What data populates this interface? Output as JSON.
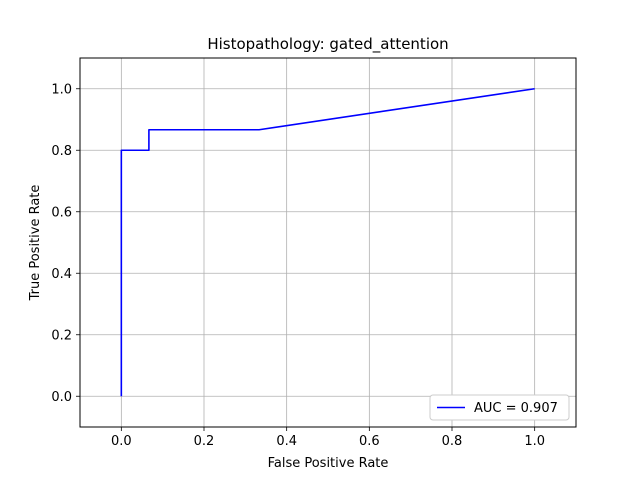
{
  "chart_data": {
    "type": "line",
    "title": "Histopathology: gated_attention",
    "xlabel": "False Positive Rate",
    "ylabel": "True Positive Rate",
    "xlim": [
      -0.1,
      1.1
    ],
    "ylim": [
      -0.1,
      1.1
    ],
    "x_ticks": [
      "0.0",
      "0.2",
      "0.4",
      "0.6",
      "0.8",
      "1.0"
    ],
    "y_ticks": [
      "0.0",
      "0.2",
      "0.4",
      "0.6",
      "0.8",
      "1.0"
    ],
    "grid": true,
    "legend_position": "lower-right",
    "series": [
      {
        "name": "AUC = 0.907",
        "color": "#0000ff",
        "x": [
          0.0,
          0.0,
          0.0667,
          0.0667,
          0.3333,
          1.0
        ],
        "y": [
          0.0,
          0.8,
          0.8,
          0.8667,
          0.8667,
          1.0
        ]
      }
    ]
  }
}
